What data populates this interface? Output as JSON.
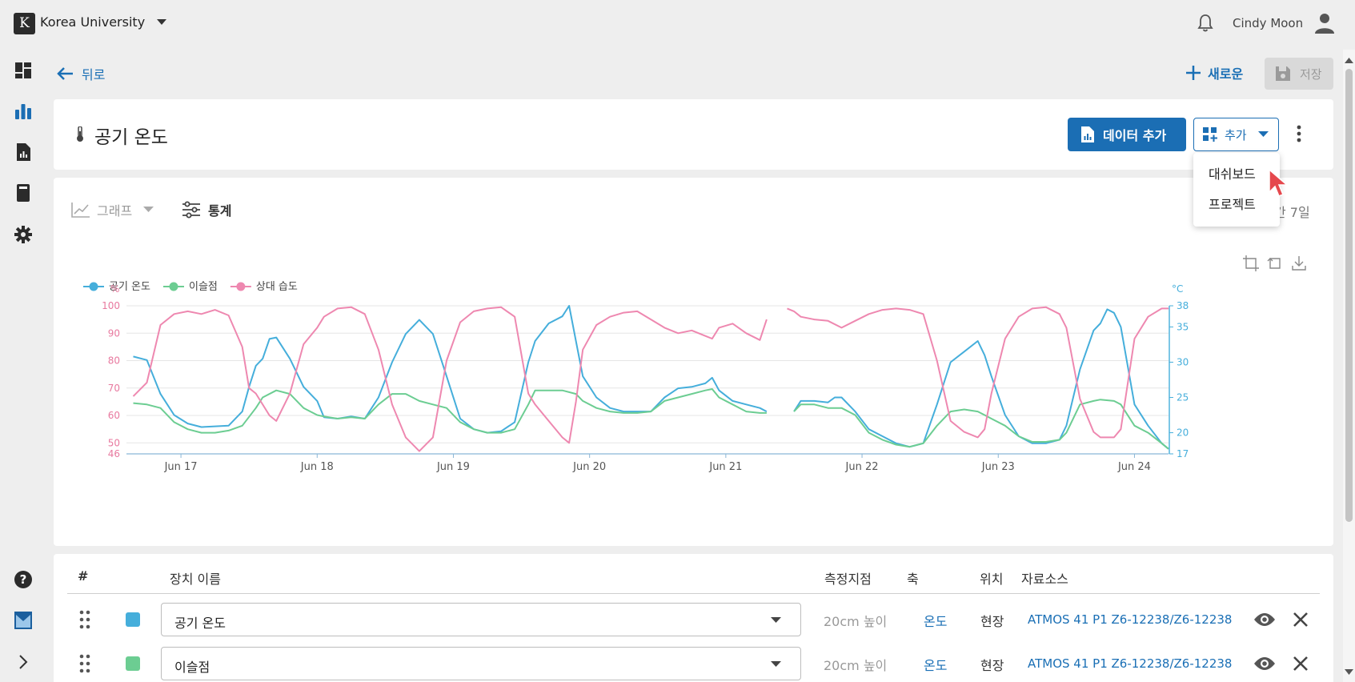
{
  "header": {
    "logo_letter": "K",
    "org_name": "Korea University",
    "user_name": "Cindy Moon"
  },
  "actions": {
    "back_label": "뒤로",
    "new_label": "새로운",
    "save_label": "저장"
  },
  "title_card": {
    "title": "공기 온도",
    "add_data_label": "데이터 추가",
    "add_label": "추가"
  },
  "add_menu": {
    "items": [
      "대쉬보드",
      "프로젝트"
    ]
  },
  "chart_controls": {
    "graph_label": "그래프",
    "stats_label": "통계",
    "period_label": "간 7일"
  },
  "chart_data": {
    "type": "line",
    "legend": [
      "공기 온도",
      "이슬점",
      "상대 습도"
    ],
    "legend_position": "top-left",
    "left_axis": {
      "unit": "%",
      "ticks": [
        46,
        50,
        60,
        70,
        80,
        90,
        100
      ],
      "range": [
        46,
        100
      ]
    },
    "right_axis": {
      "unit": "°C",
      "ticks": [
        17,
        20,
        25,
        30,
        35,
        38
      ],
      "range": [
        17,
        38
      ]
    },
    "x_ticks": [
      "Jun 17",
      "Jun 18",
      "Jun 19",
      "Jun 20",
      "Jun 21",
      "Jun 22",
      "Jun 23",
      "Jun 24"
    ],
    "x_range": [
      16.6,
      24.25
    ],
    "grid": true,
    "series": [
      {
        "name": "공기 온도",
        "axis": "right",
        "color": "#45aedb",
        "points": [
          [
            16.65,
            30.8
          ],
          [
            16.75,
            30.3
          ],
          [
            16.85,
            25.5
          ],
          [
            16.95,
            22.5
          ],
          [
            17.05,
            21.3
          ],
          [
            17.15,
            20.8
          ],
          [
            17.25,
            20.9
          ],
          [
            17.35,
            21.0
          ],
          [
            17.45,
            23.0
          ],
          [
            17.5,
            26.5
          ],
          [
            17.55,
            29.5
          ],
          [
            17.6,
            30.5
          ],
          [
            17.65,
            33.3
          ],
          [
            17.7,
            33.5
          ],
          [
            17.8,
            30.5
          ],
          [
            17.9,
            26.5
          ],
          [
            18.0,
            24.5
          ],
          [
            18.05,
            22.2
          ],
          [
            18.15,
            22.0
          ],
          [
            18.25,
            22.3
          ],
          [
            18.35,
            22.0
          ],
          [
            18.45,
            25.0
          ],
          [
            18.55,
            30.0
          ],
          [
            18.65,
            34.0
          ],
          [
            18.75,
            36.0
          ],
          [
            18.85,
            34.0
          ],
          [
            18.95,
            28.0
          ],
          [
            19.05,
            22.0
          ],
          [
            19.15,
            20.5
          ],
          [
            19.25,
            20.0
          ],
          [
            19.35,
            20.2
          ],
          [
            19.45,
            21.5
          ],
          [
            19.55,
            30.0
          ],
          [
            19.6,
            33.0
          ],
          [
            19.7,
            35.5
          ],
          [
            19.8,
            36.5
          ],
          [
            19.85,
            38.0
          ],
          [
            19.9,
            33.0
          ],
          [
            19.95,
            28.0
          ],
          [
            20.05,
            25.0
          ],
          [
            20.15,
            23.5
          ],
          [
            20.25,
            23.0
          ],
          [
            20.35,
            23.0
          ],
          [
            20.45,
            23.0
          ],
          [
            20.55,
            25.0
          ],
          [
            20.65,
            26.3
          ],
          [
            20.75,
            26.5
          ],
          [
            20.85,
            27.0
          ],
          [
            20.9,
            27.8
          ],
          [
            20.95,
            26.0
          ],
          [
            21.05,
            24.5
          ],
          [
            21.15,
            24.0
          ],
          [
            21.25,
            23.5
          ],
          [
            21.3,
            23.0
          ],
          [
            21.5,
            23.0
          ],
          [
            21.55,
            24.5
          ],
          [
            21.65,
            24.5
          ],
          [
            21.75,
            24.3
          ],
          [
            21.8,
            25.0
          ],
          [
            21.85,
            25.0
          ],
          [
            21.95,
            23.0
          ],
          [
            22.05,
            20.5
          ],
          [
            22.15,
            19.5
          ],
          [
            22.25,
            18.5
          ],
          [
            22.35,
            18.0
          ],
          [
            22.45,
            18.5
          ],
          [
            22.55,
            24.0
          ],
          [
            22.65,
            30.0
          ],
          [
            22.75,
            31.5
          ],
          [
            22.85,
            33.0
          ],
          [
            22.9,
            31.0
          ],
          [
            22.95,
            28.0
          ],
          [
            23.05,
            22.5
          ],
          [
            23.15,
            19.5
          ],
          [
            23.25,
            18.5
          ],
          [
            23.35,
            18.5
          ],
          [
            23.45,
            19.0
          ],
          [
            23.5,
            21.0
          ],
          [
            23.6,
            29.0
          ],
          [
            23.7,
            34.5
          ],
          [
            23.75,
            35.5
          ],
          [
            23.8,
            37.5
          ],
          [
            23.85,
            37.0
          ],
          [
            23.9,
            35.0
          ],
          [
            24.0,
            24.0
          ],
          [
            24.1,
            21.0
          ],
          [
            24.2,
            18.5
          ],
          [
            24.25,
            17.7
          ]
        ]
      },
      {
        "name": "이슬점",
        "axis": "right",
        "color": "#6ccd92",
        "points": [
          [
            16.65,
            24.2
          ],
          [
            16.75,
            24.0
          ],
          [
            16.85,
            23.5
          ],
          [
            16.95,
            21.5
          ],
          [
            17.05,
            20.5
          ],
          [
            17.15,
            20.0
          ],
          [
            17.25,
            20.0
          ],
          [
            17.35,
            20.3
          ],
          [
            17.45,
            21.0
          ],
          [
            17.55,
            23.5
          ],
          [
            17.6,
            25.0
          ],
          [
            17.7,
            26.0
          ],
          [
            17.8,
            25.5
          ],
          [
            17.9,
            23.5
          ],
          [
            18.0,
            22.5
          ],
          [
            18.05,
            22.3
          ],
          [
            18.15,
            22.0
          ],
          [
            18.25,
            22.2
          ],
          [
            18.35,
            22.0
          ],
          [
            18.45,
            24.0
          ],
          [
            18.55,
            25.5
          ],
          [
            18.65,
            25.5
          ],
          [
            18.75,
            24.5
          ],
          [
            18.85,
            24.0
          ],
          [
            18.95,
            23.5
          ],
          [
            19.05,
            21.5
          ],
          [
            19.15,
            20.5
          ],
          [
            19.25,
            20.0
          ],
          [
            19.35,
            20.0
          ],
          [
            19.45,
            20.5
          ],
          [
            19.55,
            24.0
          ],
          [
            19.6,
            26.0
          ],
          [
            19.7,
            26.0
          ],
          [
            19.8,
            26.0
          ],
          [
            19.9,
            25.5
          ],
          [
            19.95,
            24.5
          ],
          [
            20.05,
            23.5
          ],
          [
            20.15,
            23.0
          ],
          [
            20.25,
            22.8
          ],
          [
            20.35,
            22.8
          ],
          [
            20.45,
            23.0
          ],
          [
            20.55,
            24.5
          ],
          [
            20.65,
            25.0
          ],
          [
            20.75,
            25.5
          ],
          [
            20.85,
            26.0
          ],
          [
            20.9,
            26.2
          ],
          [
            20.95,
            25.0
          ],
          [
            21.05,
            24.0
          ],
          [
            21.15,
            23.0
          ],
          [
            21.25,
            22.8
          ],
          [
            21.3,
            22.8
          ],
          [
            21.5,
            23.0
          ],
          [
            21.55,
            24.0
          ],
          [
            21.65,
            24.0
          ],
          [
            21.75,
            23.5
          ],
          [
            21.85,
            23.5
          ],
          [
            21.95,
            22.5
          ],
          [
            22.05,
            20.0
          ],
          [
            22.15,
            19.0
          ],
          [
            22.25,
            18.3
          ],
          [
            22.35,
            18.0
          ],
          [
            22.45,
            18.5
          ],
          [
            22.55,
            21.0
          ],
          [
            22.65,
            23.0
          ],
          [
            22.75,
            23.3
          ],
          [
            22.85,
            23.0
          ],
          [
            22.9,
            22.5
          ],
          [
            22.95,
            22.0
          ],
          [
            23.05,
            21.0
          ],
          [
            23.15,
            19.5
          ],
          [
            23.25,
            18.7
          ],
          [
            23.35,
            18.7
          ],
          [
            23.45,
            19.0
          ],
          [
            23.5,
            20.0
          ],
          [
            23.6,
            24.0
          ],
          [
            23.7,
            24.5
          ],
          [
            23.75,
            24.7
          ],
          [
            23.85,
            24.5
          ],
          [
            23.9,
            24.0
          ],
          [
            24.0,
            21.0
          ],
          [
            24.1,
            20.0
          ],
          [
            24.2,
            18.5
          ],
          [
            24.25,
            17.7
          ]
        ]
      },
      {
        "name": "상대 습도",
        "axis": "left",
        "color": "#ee88b0",
        "points": [
          [
            16.65,
            67.0
          ],
          [
            16.75,
            72.0
          ],
          [
            16.85,
            93.0
          ],
          [
            16.95,
            97.0
          ],
          [
            17.05,
            98.0
          ],
          [
            17.15,
            97.0
          ],
          [
            17.25,
            98.5
          ],
          [
            17.35,
            96.5
          ],
          [
            17.45,
            85.0
          ],
          [
            17.5,
            70.0
          ],
          [
            17.55,
            68.0
          ],
          [
            17.65,
            60.0
          ],
          [
            17.7,
            58.0
          ],
          [
            17.8,
            68.0
          ],
          [
            17.9,
            86.0
          ],
          [
            18.0,
            92.0
          ],
          [
            18.05,
            96.0
          ],
          [
            18.15,
            99.0
          ],
          [
            18.25,
            99.5
          ],
          [
            18.35,
            97.0
          ],
          [
            18.45,
            84.0
          ],
          [
            18.55,
            64.0
          ],
          [
            18.65,
            52.0
          ],
          [
            18.75,
            47.0
          ],
          [
            18.85,
            52.0
          ],
          [
            18.95,
            80.0
          ],
          [
            19.05,
            94.0
          ],
          [
            19.15,
            98.0
          ],
          [
            19.25,
            99.0
          ],
          [
            19.35,
            99.5
          ],
          [
            19.45,
            96.0
          ],
          [
            19.55,
            68.0
          ],
          [
            19.6,
            64.0
          ],
          [
            19.7,
            58.0
          ],
          [
            19.8,
            52.0
          ],
          [
            19.85,
            50.0
          ],
          [
            19.9,
            65.0
          ],
          [
            19.95,
            84.0
          ],
          [
            20.05,
            93.0
          ],
          [
            20.15,
            96.0
          ],
          [
            20.25,
            97.5
          ],
          [
            20.35,
            98.0
          ],
          [
            20.45,
            95.0
          ],
          [
            20.55,
            92.0
          ],
          [
            20.65,
            90.0
          ],
          [
            20.75,
            91.0
          ],
          [
            20.85,
            89.0
          ],
          [
            20.9,
            88.0
          ],
          [
            20.95,
            92.0
          ],
          [
            21.05,
            93.5
          ],
          [
            21.15,
            90.0
          ],
          [
            21.25,
            87.5
          ],
          [
            21.3,
            95.0
          ],
          [
            21.45,
            99.0
          ],
          [
            21.5,
            98.0
          ],
          [
            21.55,
            96.0
          ],
          [
            21.65,
            95.0
          ],
          [
            21.75,
            94.5
          ],
          [
            21.85,
            92.0
          ],
          [
            21.95,
            94.5
          ],
          [
            22.05,
            97.0
          ],
          [
            22.15,
            98.5
          ],
          [
            22.25,
            99.0
          ],
          [
            22.35,
            98.5
          ],
          [
            22.45,
            97.0
          ],
          [
            22.55,
            80.0
          ],
          [
            22.65,
            58.0
          ],
          [
            22.75,
            54.0
          ],
          [
            22.85,
            52.0
          ],
          [
            22.9,
            55.0
          ],
          [
            22.95,
            68.0
          ],
          [
            23.05,
            88.0
          ],
          [
            23.15,
            96.0
          ],
          [
            23.25,
            99.0
          ],
          [
            23.35,
            99.5
          ],
          [
            23.45,
            97.0
          ],
          [
            23.5,
            92.0
          ],
          [
            23.6,
            66.0
          ],
          [
            23.7,
            54.0
          ],
          [
            23.75,
            52.0
          ],
          [
            23.85,
            52.0
          ],
          [
            23.9,
            55.0
          ],
          [
            24.0,
            88.0
          ],
          [
            24.1,
            96.0
          ],
          [
            24.2,
            99.0
          ],
          [
            24.25,
            99.0
          ]
        ]
      }
    ]
  },
  "table": {
    "headers": {
      "num": "#",
      "device": "장치 이름",
      "measure_point": "측정지점",
      "axis": "축",
      "location": "위치",
      "source": "자료소스"
    },
    "rows": [
      {
        "color": "#45aedb",
        "name": "공기 온도",
        "measure_point": "20cm 높이",
        "axis": "온도",
        "location": "현장",
        "source": "ATMOS 41 P1 Z6-12238/Z6-12238"
      },
      {
        "color": "#6ccd92",
        "name": "이슬점",
        "measure_point": "20cm 높이",
        "axis": "온도",
        "location": "현장",
        "source": "ATMOS 41 P1 Z6-12238/Z6-12238"
      }
    ]
  }
}
